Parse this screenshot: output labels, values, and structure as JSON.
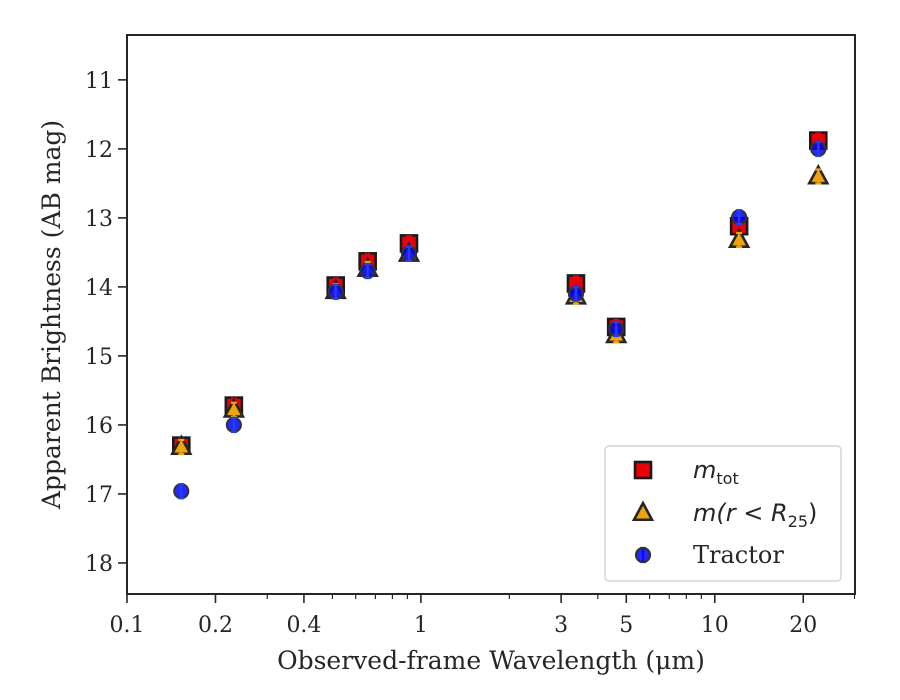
{
  "chart_data": {
    "type": "scatter",
    "x_scale": "log",
    "y_inverted": true,
    "xlabel": "Observed-frame Wavelength (μm)",
    "ylabel": "Apparent Brightness (AB mag)",
    "xlim": [
      0.1,
      30
    ],
    "ylim": [
      18.45,
      10.35
    ],
    "x_ticks": [
      {
        "value": 0.1,
        "label": "0.1"
      },
      {
        "value": 0.2,
        "label": "0.2"
      },
      {
        "value": 0.4,
        "label": "0.4"
      },
      {
        "value": 1,
        "label": "1"
      },
      {
        "value": 3,
        "label": "3"
      },
      {
        "value": 5,
        "label": "5"
      },
      {
        "value": 10,
        "label": "10"
      },
      {
        "value": 20,
        "label": "20"
      }
    ],
    "y_ticks": [
      {
        "value": 11,
        "label": "11"
      },
      {
        "value": 12,
        "label": "12"
      },
      {
        "value": 13,
        "label": "13"
      },
      {
        "value": 14,
        "label": "14"
      },
      {
        "value": 15,
        "label": "15"
      },
      {
        "value": 16,
        "label": "16"
      },
      {
        "value": 17,
        "label": "17"
      },
      {
        "value": 18,
        "label": "18"
      }
    ],
    "legend_position": "lower-right",
    "series": [
      {
        "name": "m_tot",
        "legend_main": "m",
        "legend_sub": "tot",
        "marker": "square",
        "color": "#e8000b",
        "edge": "#1a1a1a",
        "errorbar_color": "#e8000b",
        "x": [
          0.153,
          0.231,
          0.513,
          0.659,
          0.911,
          3.37,
          4.62,
          12.1,
          22.5
        ],
        "y": [
          16.3,
          15.72,
          13.98,
          13.63,
          13.37,
          13.95,
          14.58,
          13.12,
          11.88
        ]
      },
      {
        "name": "m(r < R25)",
        "legend_main": "m(r < R",
        "legend_sub": "25",
        "legend_close": ")",
        "marker": "triangle",
        "color": "#f0a30a",
        "edge": "#262626",
        "errorbar_color": "#f0a30a",
        "x": [
          0.153,
          0.231,
          0.513,
          0.659,
          0.911,
          3.37,
          4.62,
          12.1,
          22.5
        ],
        "y": [
          16.32,
          15.78,
          14.06,
          13.74,
          13.52,
          14.14,
          14.7,
          13.32,
          12.4
        ]
      },
      {
        "name": "Tractor",
        "legend_main": "Tractor",
        "marker": "circle",
        "color": "#0000ff",
        "edge": "#333333",
        "errorbar_color": "#1f3fff",
        "x": [
          0.153,
          0.231,
          0.513,
          0.659,
          0.911,
          3.37,
          4.62,
          12.1,
          22.5
        ],
        "y": [
          16.96,
          16.0,
          14.07,
          13.77,
          13.52,
          14.1,
          14.61,
          12.99,
          12.0
        ]
      }
    ]
  }
}
